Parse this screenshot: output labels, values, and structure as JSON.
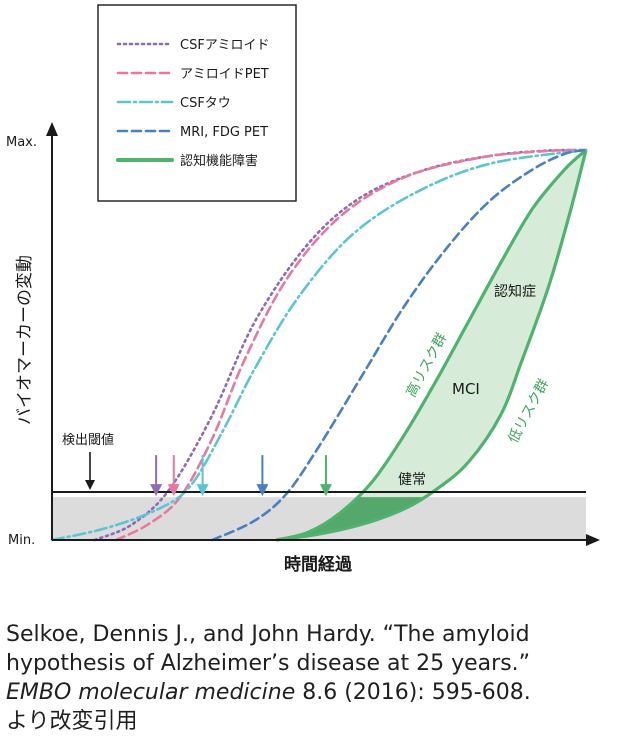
{
  "chart_data": {
    "type": "line",
    "title": "",
    "xlabel": "時間経過",
    "ylabel": "バイオマーカーの変動",
    "ytick_labels": [
      "Max.",
      "Min."
    ],
    "ylim": [
      0,
      1
    ],
    "xlim": [
      0,
      1
    ],
    "grid": false,
    "legend_position": "top-left",
    "threshold": {
      "label": "検出閾値",
      "value": 0.11
    },
    "series": [
      {
        "name": "CSFアミロイド",
        "style": "dotted",
        "color": "#8e6bb8",
        "x": [
          0.08,
          0.15,
          0.22,
          0.3,
          0.38,
          0.48,
          0.58,
          0.7,
          0.82,
          0.92,
          1.0
        ],
        "y": [
          0.0,
          0.04,
          0.13,
          0.32,
          0.56,
          0.76,
          0.88,
          0.95,
          0.985,
          0.998,
          1.0
        ]
      },
      {
        "name": "アミロイドPET",
        "style": "dashed",
        "color": "#e8799a",
        "x": [
          0.12,
          0.18,
          0.24,
          0.3,
          0.36,
          0.44,
          0.54,
          0.66,
          0.8,
          0.92,
          1.0
        ],
        "y": [
          0.0,
          0.04,
          0.11,
          0.26,
          0.46,
          0.67,
          0.83,
          0.93,
          0.98,
          0.997,
          1.0
        ]
      },
      {
        "name": "CSFタウ",
        "style": "dashdot",
        "color": "#5cc4d2",
        "x": [
          0.0,
          0.1,
          0.2,
          0.26,
          0.32,
          0.38,
          0.46,
          0.56,
          0.68,
          0.82,
          1.0
        ],
        "y": [
          0.0,
          0.03,
          0.08,
          0.14,
          0.28,
          0.44,
          0.62,
          0.78,
          0.89,
          0.965,
          1.0
        ]
      },
      {
        "name": "MRI, FDG PET",
        "style": "dashed",
        "color": "#4a7fc4",
        "x": [
          0.3,
          0.38,
          0.44,
          0.5,
          0.58,
          0.66,
          0.74,
          0.82,
          0.9,
          0.96,
          1.0
        ],
        "y": [
          0.0,
          0.05,
          0.12,
          0.24,
          0.42,
          0.6,
          0.75,
          0.87,
          0.95,
          0.99,
          1.0
        ]
      },
      {
        "name": "認知機能障害",
        "style": "solid-band",
        "color": "#4fb26d",
        "x": [
          0.42,
          0.48,
          0.54,
          0.6,
          0.66,
          0.72,
          0.78,
          0.84,
          0.9,
          0.96,
          1.0
        ],
        "y": [
          0.0,
          0.02,
          0.07,
          0.15,
          0.27,
          0.41,
          0.56,
          0.71,
          0.85,
          0.95,
          1.0
        ],
        "y_lower": [
          0.0,
          0.0,
          0.0,
          0.0,
          0.0,
          0.0,
          0.0,
          0.0,
          0.0,
          0.0,
          1.0
        ],
        "x_lower": [
          0.42,
          0.5,
          0.58,
          0.66,
          0.72,
          0.78,
          0.84,
          0.88,
          0.93,
          0.97,
          1.0
        ],
        "y_lower_curve": [
          0.0,
          0.015,
          0.04,
          0.08,
          0.13,
          0.2,
          0.32,
          0.46,
          0.65,
          0.84,
          1.0
        ]
      }
    ],
    "arrows": [
      {
        "x": 0.195,
        "color": "#8e6bb8"
      },
      {
        "x": 0.228,
        "color": "#e8799a"
      },
      {
        "x": 0.282,
        "color": "#5cc4d2"
      },
      {
        "x": 0.394,
        "color": "#4a7fc4"
      },
      {
        "x": 0.513,
        "color": "#4fb26d"
      }
    ],
    "annotations": [
      {
        "key": "dementia",
        "text": "認知症"
      },
      {
        "key": "high_risk",
        "text": "高リスク群"
      },
      {
        "key": "mci",
        "text": "MCI"
      },
      {
        "key": "low_risk",
        "text": "低リスク群"
      },
      {
        "key": "healthy",
        "text": "健常"
      }
    ]
  },
  "citation": {
    "line1": "Selkoe, Dennis J., and John Hardy. “The amyloid",
    "line2": "hypothesis of Alzheimer’s disease at 25 years.”",
    "journal": "EMBO molecular medicine",
    "line3_rest": " 8.6 (2016): 595-608.",
    "line4": "より改変引用"
  }
}
